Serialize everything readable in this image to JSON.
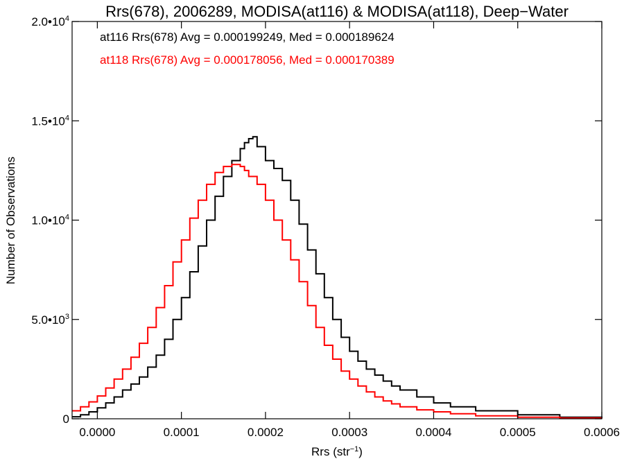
{
  "chart_data": {
    "type": "line",
    "title": "Rrs(678), 2006289, MODISA(at116) & MODISA(at118), Deep−Water",
    "xlabel": "Rrs (str",
    "xlabel_sup": "−1",
    "xlabel_end": ")",
    "ylabel": "Number of Observations",
    "xlim": [
      -3e-05,
      0.0006
    ],
    "ylim": [
      0,
      20000
    ],
    "x_ticks": [
      {
        "value": 0.0,
        "label": "0.0000"
      },
      {
        "value": 0.0001,
        "label": "0.0001"
      },
      {
        "value": 0.0002,
        "label": "0.0002"
      },
      {
        "value": 0.0003,
        "label": "0.0003"
      },
      {
        "value": 0.0004,
        "label": "0.0004"
      },
      {
        "value": 0.0005,
        "label": "0.0005"
      },
      {
        "value": 0.0006,
        "label": "0.0006"
      }
    ],
    "y_ticks": [
      {
        "value": 0,
        "label": "0",
        "sup": ""
      },
      {
        "value": 5000,
        "label": "5.0•10",
        "sup": "3"
      },
      {
        "value": 10000,
        "label": "1.0•10",
        "sup": "4"
      },
      {
        "value": 15000,
        "label": "1.5•10",
        "sup": "4"
      },
      {
        "value": 20000,
        "label": "2.0•10",
        "sup": "4"
      }
    ],
    "annotations": [
      {
        "text": "at116 Rrs(678) Avg = 0.000199249, Med = 0.000189624",
        "color": "#000000"
      },
      {
        "text": "at118 Rrs(678) Avg = 0.000178056, Med = 0.000170389",
        "color": "#ff0000"
      }
    ],
    "series": [
      {
        "color": "#000000",
        "x": [
          -3e-05,
          -2e-05,
          -1e-05,
          0.0,
          1e-05,
          2e-05,
          3e-05,
          4e-05,
          5e-05,
          6e-05,
          7e-05,
          8e-05,
          9e-05,
          0.0001,
          0.00011,
          0.00012,
          0.00013,
          0.00014,
          0.00015,
          0.00016,
          0.00017,
          0.000175,
          0.00018,
          0.000185,
          0.00019,
          0.0002,
          0.00021,
          0.00022,
          0.00023,
          0.00024,
          0.00025,
          0.00026,
          0.00027,
          0.00028,
          0.00029,
          0.0003,
          0.00031,
          0.00032,
          0.00033,
          0.00034,
          0.00035,
          0.00036,
          0.00038,
          0.0004,
          0.00042,
          0.00045,
          0.0005,
          0.00055,
          0.0006
        ],
        "y": [
          100,
          200,
          350,
          550,
          800,
          1100,
          1450,
          1750,
          2100,
          2600,
          3200,
          4000,
          5000,
          6100,
          7400,
          8700,
          10000,
          11200,
          12200,
          13000,
          13600,
          13900,
          14100,
          14200,
          13700,
          13000,
          12600,
          12000,
          11000,
          9800,
          8500,
          7300,
          6100,
          5000,
          4100,
          3400,
          2900,
          2500,
          2200,
          1900,
          1650,
          1450,
          1100,
          800,
          600,
          400,
          200,
          80,
          30
        ]
      },
      {
        "color": "#ff0000",
        "x": [
          -3e-05,
          -2e-05,
          -1e-05,
          0.0,
          1e-05,
          2e-05,
          3e-05,
          4e-05,
          5e-05,
          6e-05,
          7e-05,
          8e-05,
          9e-05,
          0.0001,
          0.00011,
          0.00012,
          0.00013,
          0.00014,
          0.00015,
          0.00016,
          0.00017,
          0.000175,
          0.00018,
          0.00019,
          0.0002,
          0.00021,
          0.00022,
          0.00023,
          0.00024,
          0.00025,
          0.00026,
          0.00027,
          0.00028,
          0.00029,
          0.0003,
          0.00031,
          0.00032,
          0.00033,
          0.00034,
          0.00035,
          0.00036,
          0.00038,
          0.0004,
          0.00042,
          0.00045,
          0.0005,
          0.00055,
          0.0006
        ],
        "y": [
          400,
          600,
          850,
          1150,
          1550,
          2000,
          2500,
          3100,
          3800,
          4600,
          5600,
          6700,
          7900,
          9000,
          10100,
          11000,
          11800,
          12400,
          12700,
          12800,
          12700,
          12500,
          12200,
          11800,
          11000,
          10000,
          9000,
          8000,
          6900,
          5700,
          4600,
          3700,
          3000,
          2400,
          2000,
          1650,
          1350,
          1100,
          900,
          750,
          600,
          450,
          350,
          250,
          150,
          80,
          40,
          20
        ]
      }
    ]
  }
}
